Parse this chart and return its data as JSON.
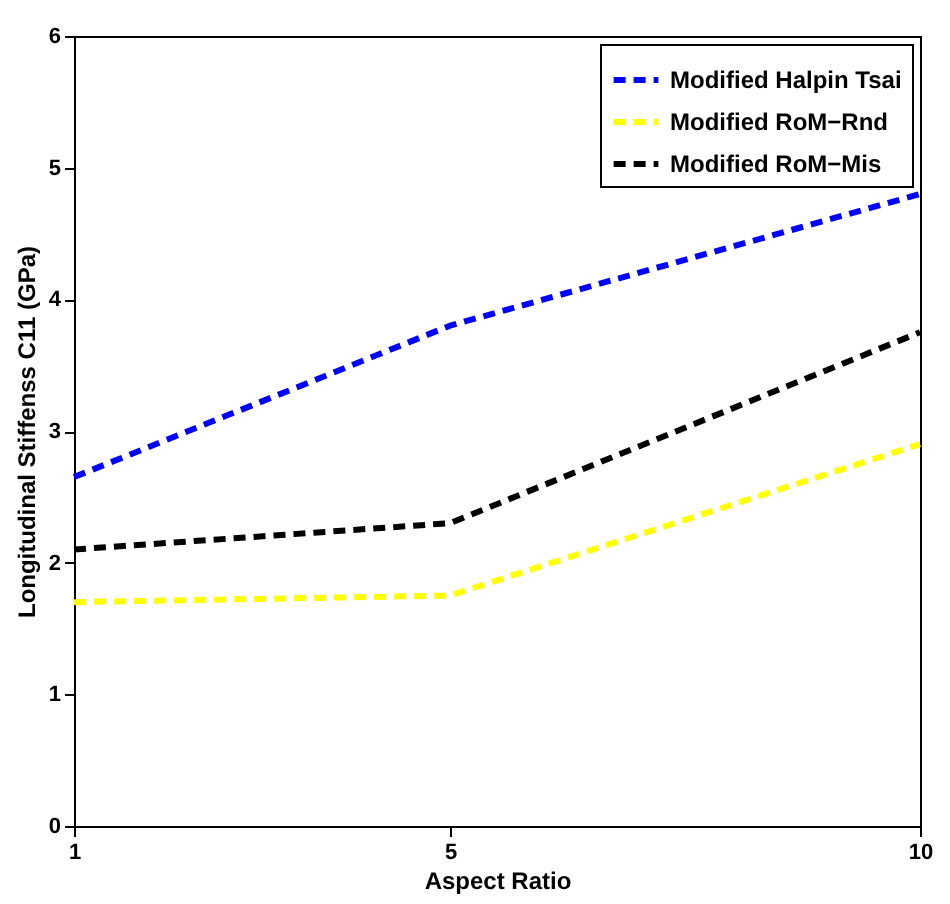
{
  "chart_data": {
    "type": "line",
    "xlabel": "Aspect Ratio",
    "ylabel": "Longitudinal Stiffenss C11 (GPa)",
    "x": [
      1,
      5,
      10
    ],
    "xlim": [
      1,
      10
    ],
    "xticks": [
      1,
      5,
      10
    ],
    "ylim": [
      0,
      6
    ],
    "yticks": [
      0,
      1,
      2,
      3,
      4,
      5,
      6
    ],
    "line_style": "dashed",
    "legend": "top right",
    "grid": false,
    "series": [
      {
        "name": "Modified Halpin Tsai",
        "color": "#0000ff",
        "values": [
          2.65,
          3.8,
          4.8
        ]
      },
      {
        "name": "Modified RoM−Rnd",
        "color": "#ffff00",
        "values": [
          1.7,
          1.75,
          2.9
        ]
      },
      {
        "name": "Modified RoM−Mis",
        "color": "#000000",
        "values": [
          2.1,
          2.3,
          3.75
        ]
      }
    ]
  }
}
